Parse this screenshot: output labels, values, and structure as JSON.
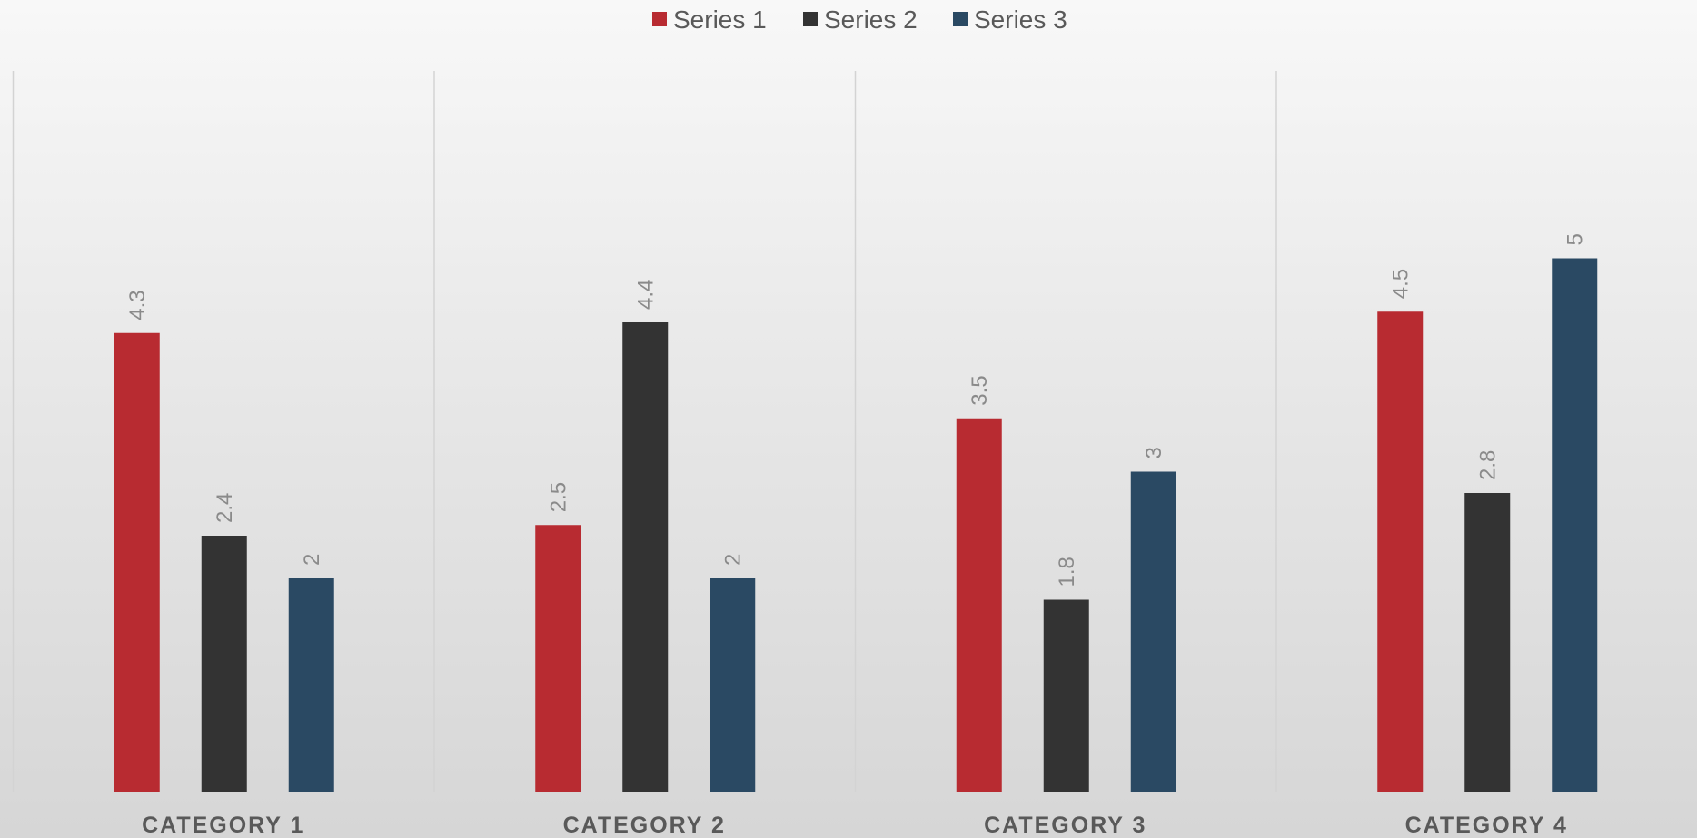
{
  "chart_data": {
    "type": "bar",
    "categories": [
      "CATEGORY 1",
      "CATEGORY 2",
      "CATEGORY 3",
      "CATEGORY 4"
    ],
    "series": [
      {
        "name": "Series 1",
        "color": "#b82b31",
        "values": [
          4.3,
          2.5,
          3.5,
          4.5
        ]
      },
      {
        "name": "Series 2",
        "color": "#333333",
        "values": [
          2.4,
          4.4,
          1.8,
          2.8
        ]
      },
      {
        "name": "Series 3",
        "color": "#2a4963",
        "values": [
          2,
          2,
          3,
          5
        ]
      }
    ],
    "ylim": [
      0,
      6
    ],
    "legend_position": "top",
    "grid": "vertical category separators",
    "data_labels": true,
    "data_label_orientation": "rotated"
  }
}
